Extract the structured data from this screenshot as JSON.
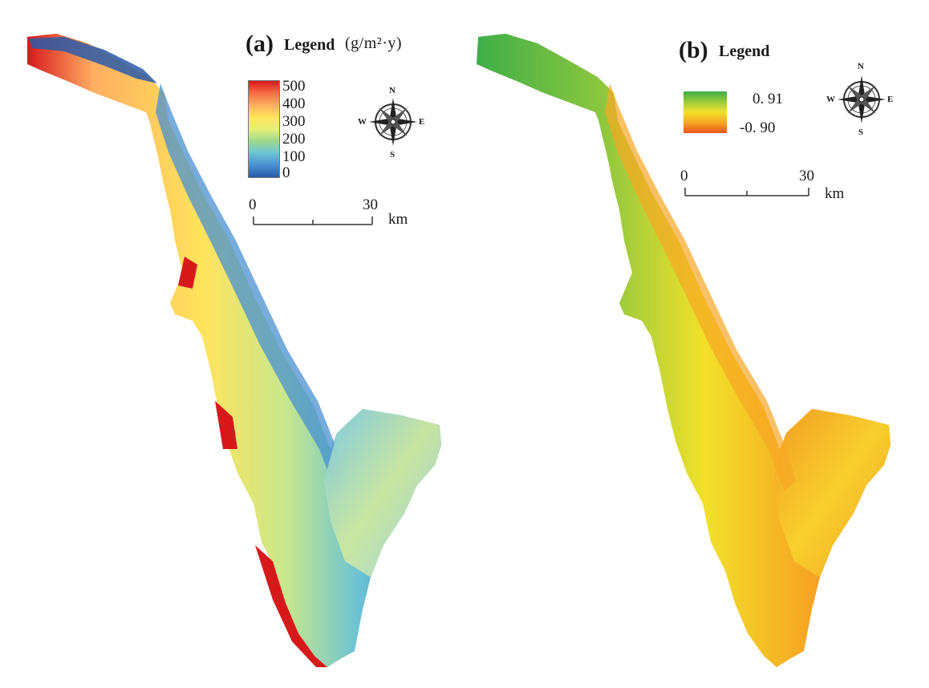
{
  "panel_a": {
    "label": "(a)",
    "legend_title": "Legend",
    "legend_unit": "(g/m²·y)",
    "ticks": [
      "500",
      "400",
      "300",
      "200",
      "100",
      "0"
    ],
    "colors": [
      "#d7191c",
      "#f46d43",
      "#fdae61",
      "#ffe45c",
      "#e6f075",
      "#9ed98a",
      "#6cc3d4",
      "#4a90d0",
      "#2b5aa8"
    ],
    "scale": {
      "start": "0",
      "end": "30",
      "unit": "km"
    },
    "compass": {
      "n": "N",
      "s": "S",
      "e": "E",
      "w": "W"
    }
  },
  "panel_b": {
    "label": "(b)",
    "legend_title": "Legend",
    "ticks": [
      "0. 91",
      "-0. 90"
    ],
    "colors": [
      "#3fae49",
      "#9ccc3c",
      "#f2e12b",
      "#f6a623",
      "#e8541e"
    ],
    "scale": {
      "start": "0",
      "end": "30",
      "unit": "km"
    },
    "compass": {
      "n": "N",
      "s": "S",
      "e": "E",
      "w": "W"
    }
  }
}
